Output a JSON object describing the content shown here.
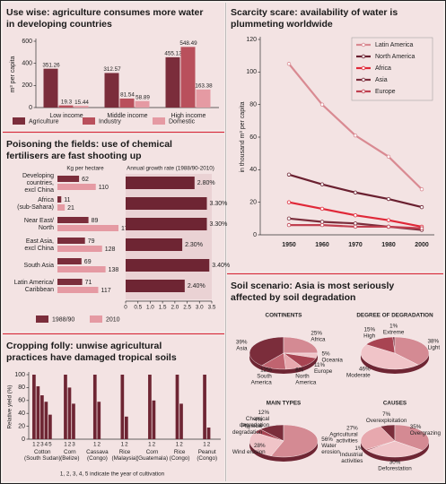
{
  "chart_data": [
    {
      "type": "bar",
      "title": "Use wise: agriculture consumes more water in developing countries",
      "ylabel": "m³ per capita",
      "categories": [
        "Low income",
        "Middle income",
        "High income"
      ],
      "series": [
        {
          "name": "Agriculture",
          "color": "#7b2d3b",
          "values": [
            351.26,
            312.57,
            455.13
          ]
        },
        {
          "name": "Industry",
          "color": "#b9505c",
          "values": [
            19.3,
            81.54,
            548.49
          ]
        },
        {
          "name": "Domestic",
          "color": "#e59aa3",
          "values": [
            15.44,
            58.89,
            163.38
          ]
        }
      ],
      "ylim": [
        0,
        600
      ],
      "yticks": [
        0,
        200,
        400,
        600
      ]
    },
    {
      "type": "barh",
      "title": "Poisoning the fields: use of chemical fertilisers are fast shooting up",
      "xlabel": "Kg per hectare",
      "categories": [
        "Developing countries, excl China",
        "Africa (sub-Sahara)",
        "Near East/ North",
        "East Asia, excl China",
        "South Asia",
        "Latin America/ Caribbean"
      ],
      "series": [
        {
          "name": "1988/90",
          "color": "#7b2d3b",
          "values": [
            62,
            11,
            89,
            79,
            69,
            71
          ]
        },
        {
          "name": "2010",
          "color": "#e59aa3",
          "values": [
            110,
            21,
            175,
            128,
            138,
            117
          ]
        }
      ],
      "growth": {
        "title": "Annual growth rate (1988/90-2010)",
        "color": "#6e2533",
        "values": [
          2.8,
          3.3,
          3.3,
          2.3,
          3.4,
          2.4
        ],
        "value_labels": [
          "2.80%",
          "3.30%",
          "3.30%",
          "2.30%",
          "3.40%",
          "2.40%"
        ],
        "xlim": [
          0,
          3.5
        ],
        "xticks": [
          0,
          0.5,
          {
            "value": 1,
            "label": "1.0"
          },
          1.5,
          {
            "value": 2,
            "label": "2.0"
          },
          2.5,
          {
            "value": 3,
            "label": "3.0"
          },
          3.5
        ]
      }
    },
    {
      "type": "grouped_bar",
      "title": "Cropping folly: unwise agricultural practices have damaged tropical soils",
      "ylabel": "Relative yield (%)",
      "note": "1, 2, 3, 4, 5 indicate the year of cultivation",
      "color": "#6e2533",
      "groups": [
        {
          "name": "Cotton (South Sudan)",
          "bar_labels": [
            "1",
            "2",
            "3",
            "4",
            "5"
          ],
          "values": [
            100,
            82,
            68,
            58,
            38
          ]
        },
        {
          "name": "Corn (Belize)",
          "bar_labels": [
            "1",
            "2",
            "3"
          ],
          "values": [
            100,
            80,
            55
          ]
        },
        {
          "name": "Cassava (Congo)",
          "bar_labels": [
            "1",
            "2"
          ],
          "values": [
            100,
            58
          ]
        },
        {
          "name": "Rice (Malaysia)",
          "bar_labels": [
            "1",
            "2"
          ],
          "values": [
            100,
            35
          ]
        },
        {
          "name": "Corn (Guatemala)",
          "bar_labels": [
            "1",
            "2"
          ],
          "values": [
            100,
            60
          ]
        },
        {
          "name": "Rice (Congo)",
          "bar_labels": [
            "1",
            "2"
          ],
          "values": [
            100,
            55
          ]
        },
        {
          "name": "Peanut (Congo)",
          "bar_labels": [
            "1",
            "2"
          ],
          "values": [
            100,
            18
          ]
        }
      ],
      "ylim": [
        0,
        100
      ],
      "yticks": [
        0,
        20,
        40,
        60,
        80,
        100
      ]
    },
    {
      "type": "line",
      "title": "Scarcity scare: availability of water is plummeting worldwide",
      "ylabel": "in thousand m³ per capita",
      "categories": [
        "1950",
        "1960",
        "1970",
        "1980",
        "2000"
      ],
      "series": [
        {
          "name": "Latin America",
          "color": "#d98a92",
          "values": [
            105,
            80,
            61,
            48,
            28
          ]
        },
        {
          "name": "North America",
          "color": "#6a2030",
          "values": [
            37,
            31,
            26,
            22,
            17
          ]
        },
        {
          "name": "Africa",
          "color": "#e02838",
          "values": [
            20,
            16,
            12,
            9,
            5
          ]
        },
        {
          "name": "Asia",
          "color": "#7b2d3b",
          "values": [
            10,
            8,
            7,
            5,
            3
          ]
        },
        {
          "name": "Europe",
          "color": "#c04050",
          "values": [
            6,
            6,
            5,
            5,
            4
          ]
        }
      ],
      "ylim": [
        0,
        120
      ],
      "yticks": [
        0,
        20,
        40,
        60,
        80,
        100,
        120
      ]
    },
    {
      "type": "pie",
      "title": "Soil scenario: Asia is most seriously affected by soil degradation",
      "colors": [
        "#7b2d3b",
        "#d48a93",
        "#f0c4c8",
        "#a84452",
        "#e7a8ae",
        "#c06470"
      ],
      "pies": [
        {
          "title": "CONTINENTS",
          "labels": [
            "Asia",
            "Africa",
            "Oceania",
            "Europe",
            "North America",
            "South America"
          ],
          "values": [
            39,
            25,
            5,
            11,
            8,
            12
          ],
          "value_labels": [
            "39%",
            "25%",
            "5%",
            "11%",
            "8%",
            "12%"
          ]
        },
        {
          "title": "DEGREE OF DEGRADATION",
          "labels": [
            "Extreme",
            "Light",
            "Moderate",
            "High"
          ],
          "values": [
            1,
            38,
            46,
            15
          ],
          "value_labels": [
            "1%",
            "38%",
            "46%",
            "15%"
          ]
        },
        {
          "title": "MAIN TYPES",
          "labels": [
            "Chemical degradation",
            "Water erosion",
            "Wind erosion",
            "Physical degradation"
          ],
          "values": [
            12,
            56,
            28,
            4
          ],
          "value_labels": [
            "12%",
            "56%",
            "28%",
            "4%"
          ]
        },
        {
          "title": "CAUSES",
          "labels": [
            "Overexploitation",
            "Overgrazing",
            "Deforestation",
            "Industrial activities",
            "Agricultural activities"
          ],
          "values": [
            7,
            35,
            30,
            1,
            27
          ],
          "value_labels": [
            "7%",
            "35%",
            "30%",
            "1%",
            "27%"
          ]
        }
      ]
    }
  ]
}
